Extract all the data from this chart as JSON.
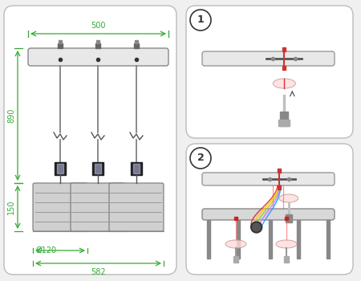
{
  "bg_color": "#f0f0f0",
  "green": "#33aa33",
  "dark": "#333333",
  "gray": "#888888",
  "lgray": "#cccccc",
  "dgray": "#555555",
  "red": "#dd4444",
  "dim_500": "500",
  "dim_890": "890",
  "dim_150": "150",
  "dim_582": "582",
  "dim_d120": "Ø120",
  "wire_colors": [
    "#dd3333",
    "#ffcc00",
    "#aacc22",
    "#cc77ff",
    "#3399ff"
  ]
}
